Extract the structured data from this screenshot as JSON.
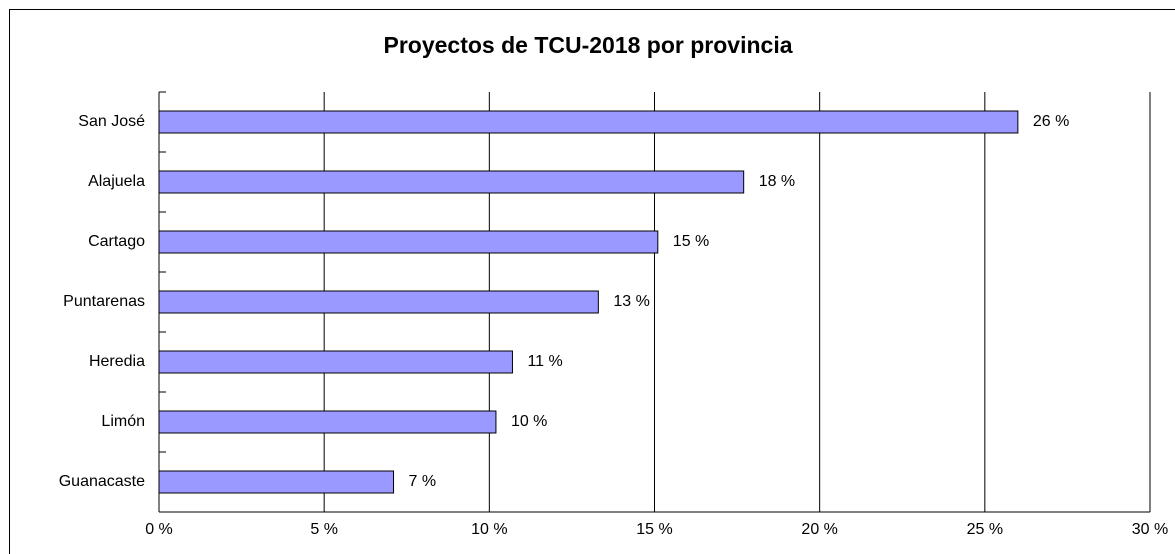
{
  "chart_data": {
    "type": "bar",
    "orientation": "horizontal",
    "title": "Proyectos de TCU-2018 por provincia",
    "categories": [
      "San José",
      "Alajuela",
      "Cartago",
      "Puntarenas",
      "Heredia",
      "Limón",
      "Guanacaste"
    ],
    "values": [
      26.0,
      17.7,
      15.1,
      13.3,
      10.7,
      10.2,
      7.1
    ],
    "value_labels": [
      "26 %",
      "18 %",
      "15 %",
      "13 %",
      "11 %",
      "10 %",
      "7 %"
    ],
    "color": "#9999ff",
    "xlim": [
      0,
      30
    ],
    "xticks": [
      {
        "value": 0,
        "label": "0 %"
      },
      {
        "value": 5,
        "label": "5 %"
      },
      {
        "value": 10,
        "label": "10 %"
      },
      {
        "value": 15,
        "label": "15 %"
      },
      {
        "value": 20,
        "label": "20 %"
      },
      {
        "value": 25,
        "label": "25 %"
      },
      {
        "value": 30,
        "label": "30 %"
      }
    ],
    "grid": true
  }
}
